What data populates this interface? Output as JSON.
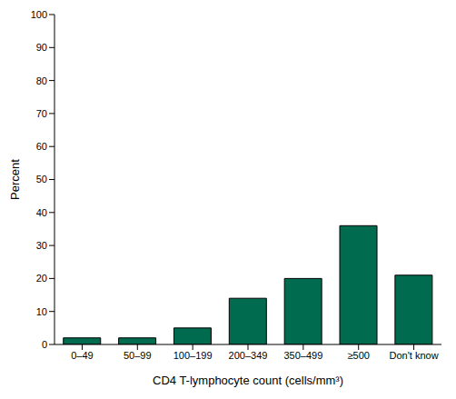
{
  "chart_data": {
    "type": "bar",
    "categories": [
      "0–49",
      "50–99",
      "100–199",
      "200–349",
      "350–499",
      "≥500",
      "Don't know"
    ],
    "values": [
      2,
      2,
      5,
      14,
      20,
      36,
      21
    ],
    "color": "#006b4f",
    "xlabel": "CD4 T-lymphocyte count (cells/mm³)",
    "ylabel": "Percent",
    "ylim": [
      0,
      100
    ],
    "yticks": [
      0,
      10,
      20,
      30,
      40,
      50,
      60,
      70,
      80,
      90,
      100
    ],
    "grid": false
  }
}
